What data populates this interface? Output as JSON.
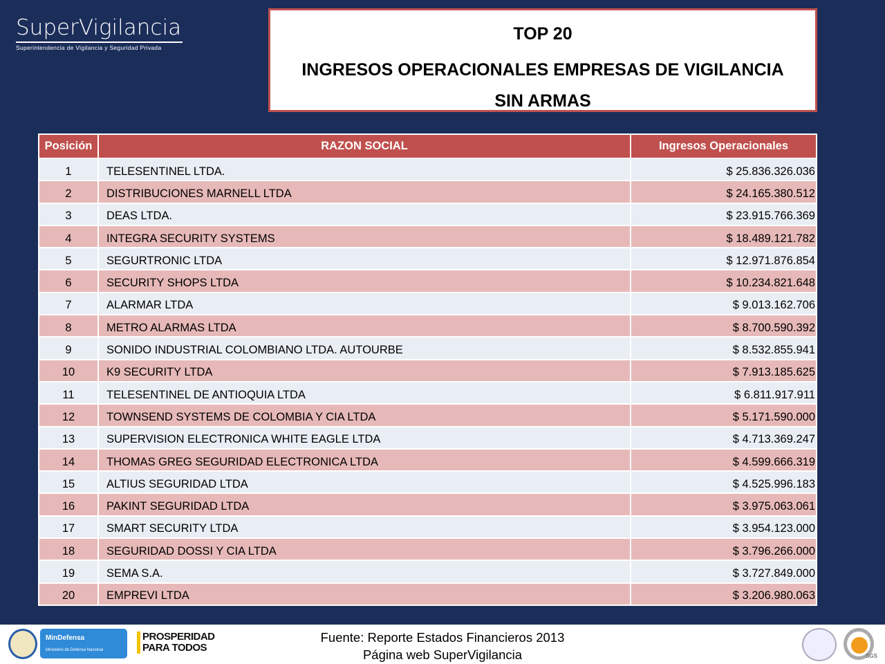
{
  "logo": {
    "name": "SuperVigilancia",
    "subtitle": "Superintendencia de Vigilancia y Seguridad Privada"
  },
  "title": {
    "line1": "TOP 20",
    "line2": "INGRESOS OPERACIONALES EMPRESAS DE VIGILANCIA",
    "line3": "SIN ARMAS"
  },
  "table": {
    "headers": [
      "Posición",
      "RAZON SOCIAL",
      "Ingresos Operacionales"
    ],
    "rows": [
      [
        "1",
        "TELESENTINEL LTDA.",
        "$ 25.836.326.036"
      ],
      [
        "2",
        "DISTRIBUCIONES MARNELL LTDA",
        "$ 24.165.380.512"
      ],
      [
        "3",
        "DEAS LTDA.",
        "$ 23.915.766.369"
      ],
      [
        "4",
        "INTEGRA SECURITY SYSTEMS",
        "$ 18.489.121.782"
      ],
      [
        "5",
        "SEGURTRONIC LTDA",
        "$ 12.971.876.854"
      ],
      [
        "6",
        "SECURITY SHOPS LTDA",
        "$ 10.234.821.648"
      ],
      [
        "7",
        "ALARMAR LTDA",
        "$ 9.013.162.706"
      ],
      [
        "8",
        "METRO ALARMAS LTDA",
        "$ 8.700.590.392"
      ],
      [
        "9",
        "SONIDO INDUSTRIAL COLOMBIANO LTDA. AUTOURBE",
        "$ 8.532.855.941"
      ],
      [
        "10",
        "K9 SECURITY LTDA",
        "$ 7.913.185.625"
      ],
      [
        "11",
        "TELESENTINEL DE ANTIOQUIA LTDA",
        "$ 6.811.917.911"
      ],
      [
        "12",
        "TOWNSEND SYSTEMS DE COLOMBIA Y CIA LTDA",
        "$ 5.171.590.000"
      ],
      [
        "13",
        "SUPERVISION ELECTRONICA WHITE EAGLE LTDA",
        "$ 4.713.369.247"
      ],
      [
        "14",
        "THOMAS GREG SEGURIDAD ELECTRONICA LTDA",
        "$ 4.599.666.319"
      ],
      [
        "15",
        "ALTIUS SEGURIDAD LTDA",
        "$ 4.525.996.183"
      ],
      [
        "16",
        "PAKINT SEGURIDAD LTDA",
        "$ 3.975.063.061"
      ],
      [
        "17",
        "SMART SECURITY LTDA",
        "$ 3.954.123.000"
      ],
      [
        "18",
        "SEGURIDAD DOSSI Y CIA LTDA",
        "$ 3.796.266.000"
      ],
      [
        "19",
        "SEMA S.A.",
        "$ 3.727.849.000"
      ],
      [
        "20",
        "EMPREVI LTDA",
        "$ 3.206.980.063"
      ]
    ]
  },
  "footer": {
    "source": "Fuente: Reporte Estados Financieros 2013",
    "web": "Página web SuperVigilancia",
    "mindefensa": "MinDefensa",
    "mindefensa_sub": "Ministerio de Defensa Nacional",
    "prosperidad": "PROSPERIDAD",
    "para_todos": "PARA TODOS",
    "sgs": "SGS"
  },
  "colors": {
    "background": "#1b2d59",
    "header": "#c0504d",
    "row_light": "#e9edf4",
    "row_pink": "#e6b9b8"
  }
}
